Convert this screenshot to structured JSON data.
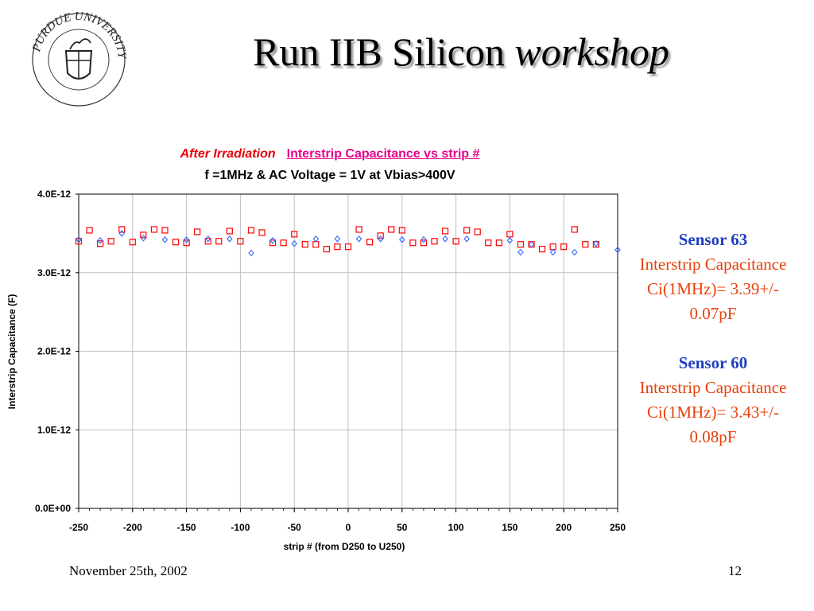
{
  "slide": {
    "title_main": "Run IIB Silicon",
    "title_italic": "workshop",
    "date": "November 25th, 2002",
    "page_number": "12"
  },
  "logo": {
    "icon": "purdue-university-seal",
    "text": "PURDUE UNIVERSITY"
  },
  "chart_header": {
    "tag": "After Irradiation",
    "title": "Interstrip Capacitance vs strip #",
    "subtitle": "f =1MHz & AC Voltage = 1V at Vbias>400V"
  },
  "sensors": [
    {
      "name": "Sensor 63",
      "line1": "Interstrip Capacitance",
      "line2": "Ci(1MHz)= 3.39+/-",
      "line3": "0.07pF"
    },
    {
      "name": "Sensor 60",
      "line1": "Interstrip Capacitance",
      "line2": "Ci(1MHz)= 3.43+/-",
      "line3": "0.08pF"
    }
  ],
  "chart_data": {
    "type": "scatter",
    "xlabel": "strip # (from D250 to U250)",
    "ylabel": "Interstrip Capacitance (F)",
    "xlim": [
      -250,
      250
    ],
    "ylim": [
      0,
      4e-12
    ],
    "x_ticks": [
      "-250",
      "-200",
      "-150",
      "-100",
      "-50",
      "0",
      "50",
      "100",
      "150",
      "200",
      "250"
    ],
    "y_ticks": [
      "0.0E+00",
      "1.0E-12",
      "2.0E-12",
      "3.0E-12",
      "4.0E-12"
    ],
    "x_tick_values": [
      -250,
      -200,
      -150,
      -100,
      -50,
      0,
      50,
      100,
      150,
      200,
      250
    ],
    "y_tick_values": [
      0,
      1e-12,
      2e-12,
      3e-12,
      4e-12
    ],
    "grid": true,
    "series": [
      {
        "marker": "square",
        "color": "#ff0000",
        "points": [
          [
            -250,
            3.4e-12
          ],
          [
            -240,
            3.54e-12
          ],
          [
            -230,
            3.37e-12
          ],
          [
            -220,
            3.4e-12
          ],
          [
            -210,
            3.55e-12
          ],
          [
            -200,
            3.39e-12
          ],
          [
            -190,
            3.48e-12
          ],
          [
            -180,
            3.55e-12
          ],
          [
            -170,
            3.54e-12
          ],
          [
            -160,
            3.39e-12
          ],
          [
            -150,
            3.38e-12
          ],
          [
            -140,
            3.52e-12
          ],
          [
            -130,
            3.4e-12
          ],
          [
            -120,
            3.4e-12
          ],
          [
            -110,
            3.53e-12
          ],
          [
            -100,
            3.4e-12
          ],
          [
            -90,
            3.54e-12
          ],
          [
            -80,
            3.51e-12
          ],
          [
            -70,
            3.38e-12
          ],
          [
            -60,
            3.38e-12
          ],
          [
            -50,
            3.49e-12
          ],
          [
            -40,
            3.36e-12
          ],
          [
            -30,
            3.36e-12
          ],
          [
            -20,
            3.3e-12
          ],
          [
            -10,
            3.33e-12
          ],
          [
            0,
            3.33e-12
          ],
          [
            10,
            3.55e-12
          ],
          [
            20,
            3.39e-12
          ],
          [
            30,
            3.47e-12
          ],
          [
            40,
            3.55e-12
          ],
          [
            50,
            3.54e-12
          ],
          [
            60,
            3.38e-12
          ],
          [
            70,
            3.38e-12
          ],
          [
            80,
            3.4e-12
          ],
          [
            90,
            3.53e-12
          ],
          [
            100,
            3.4e-12
          ],
          [
            110,
            3.54e-12
          ],
          [
            120,
            3.52e-12
          ],
          [
            130,
            3.38e-12
          ],
          [
            140,
            3.38e-12
          ],
          [
            150,
            3.49e-12
          ],
          [
            160,
            3.36e-12
          ],
          [
            170,
            3.36e-12
          ],
          [
            180,
            3.3e-12
          ],
          [
            190,
            3.33e-12
          ],
          [
            200,
            3.33e-12
          ],
          [
            210,
            3.55e-12
          ],
          [
            220,
            3.36e-12
          ],
          [
            230,
            3.36e-12
          ]
        ]
      },
      {
        "marker": "diamond",
        "color": "#3366ff",
        "points": [
          [
            -250,
            3.42e-12
          ],
          [
            -230,
            3.41e-12
          ],
          [
            -210,
            3.5e-12
          ],
          [
            -190,
            3.44e-12
          ],
          [
            -170,
            3.42e-12
          ],
          [
            -150,
            3.42e-12
          ],
          [
            -130,
            3.43e-12
          ],
          [
            -110,
            3.43e-12
          ],
          [
            -90,
            3.25e-12
          ],
          [
            -70,
            3.41e-12
          ],
          [
            -50,
            3.37e-12
          ],
          [
            -30,
            3.43e-12
          ],
          [
            -10,
            3.43e-12
          ],
          [
            10,
            3.43e-12
          ],
          [
            30,
            3.43e-12
          ],
          [
            50,
            3.42e-12
          ],
          [
            70,
            3.42e-12
          ],
          [
            90,
            3.43e-12
          ],
          [
            110,
            3.43e-12
          ],
          [
            150,
            3.41e-12
          ],
          [
            160,
            3.26e-12
          ],
          [
            170,
            3.36e-12
          ],
          [
            190,
            3.26e-12
          ],
          [
            210,
            3.26e-12
          ],
          [
            230,
            3.37e-12
          ],
          [
            250,
            3.29e-12
          ]
        ]
      }
    ]
  }
}
